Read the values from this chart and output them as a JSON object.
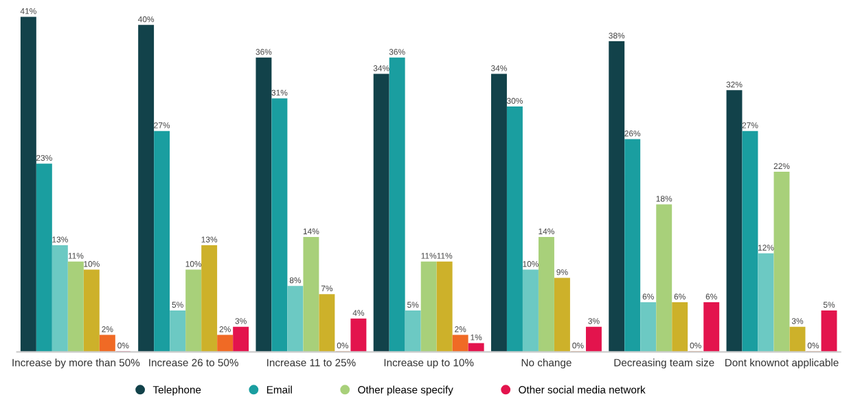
{
  "chart_data": {
    "type": "bar",
    "categories": [
      "Increase by more than 50%",
      "Increase 26 to 50%",
      "Increase 11 to 25%",
      "Increase up to 10%",
      "No change",
      "Decreasing team size",
      "Dont knownot applicable"
    ],
    "series": [
      {
        "name": "Telephone",
        "color": "#12424a",
        "values": [
          41,
          40,
          36,
          34,
          34,
          38,
          32
        ],
        "value_labels": [
          "41%",
          "40%",
          "36%",
          "34%",
          "34%",
          "38%",
          "32%"
        ]
      },
      {
        "name": "Email",
        "color": "#1a9ea0",
        "values": [
          23,
          27,
          31,
          36,
          30,
          26,
          27
        ],
        "value_labels": [
          "23%",
          "27%",
          "31%",
          "36%",
          "30%",
          "26%",
          "27%"
        ]
      },
      {
        "color": "#6cc9c3",
        "values": [
          13,
          5,
          8,
          5,
          10,
          6,
          12
        ],
        "value_labels": [
          "13%",
          "5%",
          "8%",
          "5%",
          "10%",
          "6%",
          "12%"
        ]
      },
      {
        "name": "Other please specify",
        "color": "#a8d07a",
        "values": [
          11,
          10,
          14,
          11,
          14,
          18,
          22
        ],
        "value_labels": [
          "11%",
          "10%",
          "14%",
          "11%",
          "14%",
          "18%",
          "22%"
        ]
      },
      {
        "color": "#cdb12a",
        "values": [
          10,
          13,
          7,
          11,
          9,
          6,
          3
        ],
        "value_labels": [
          "10%",
          "13%",
          "7%",
          "11%",
          "9%",
          "6%",
          "3%"
        ]
      },
      {
        "color": "#f06a25",
        "values": [
          2,
          2,
          0,
          2,
          0,
          0,
          0
        ],
        "value_labels": [
          "2%",
          "2%",
          "0%",
          "2%",
          "0%",
          "0%",
          "0%"
        ]
      },
      {
        "name": "Other social media network",
        "color": "#e3144d",
        "values": [
          0,
          3,
          4,
          1,
          3,
          6,
          5
        ],
        "value_labels": [
          "0%",
          "3%",
          "4%",
          "1%",
          "3%",
          "6%",
          "5%"
        ]
      }
    ],
    "tick_labels": "x",
    "grid": false,
    "legend": "bottom"
  }
}
